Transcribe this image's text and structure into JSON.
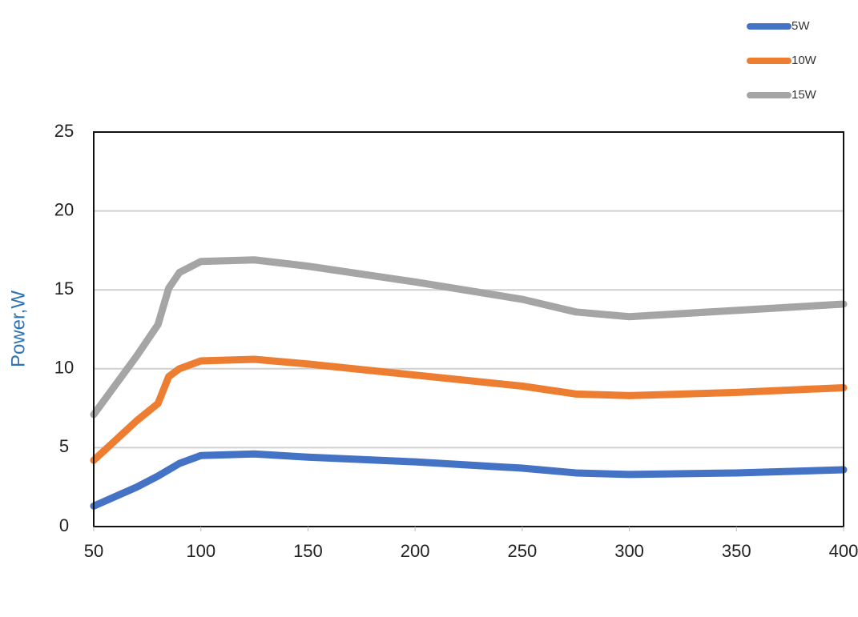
{
  "chart_data": {
    "type": "line",
    "y_label": "Power,W",
    "x": [
      50,
      70,
      80,
      85,
      90,
      100,
      125,
      150,
      200,
      250,
      275,
      300,
      350,
      400
    ],
    "series": [
      {
        "name": "5W",
        "color": "#4472c4",
        "values": [
          1.3,
          2.5,
          3.2,
          3.6,
          4.0,
          4.5,
          4.6,
          4.4,
          4.1,
          3.7,
          3.4,
          3.3,
          3.4,
          3.6
        ]
      },
      {
        "name": "10W",
        "color": "#ed7d31",
        "values": [
          4.2,
          6.7,
          7.8,
          9.5,
          10.0,
          10.5,
          10.6,
          10.3,
          9.6,
          8.9,
          8.4,
          8.3,
          8.5,
          8.8
        ]
      },
      {
        "name": "15W",
        "color": "#a5a5a5",
        "values": [
          7.1,
          10.8,
          12.8,
          15.1,
          16.1,
          16.8,
          16.9,
          16.5,
          15.5,
          14.4,
          13.6,
          13.3,
          13.7,
          14.1
        ]
      }
    ],
    "xlim": [
      50,
      400
    ],
    "xticks": [
      50,
      100,
      150,
      200,
      250,
      300,
      350,
      400
    ],
    "ylim": [
      0,
      25
    ],
    "yticks": [
      0,
      5,
      10,
      15,
      20,
      25
    ],
    "grid": true,
    "legend": "top-right"
  }
}
